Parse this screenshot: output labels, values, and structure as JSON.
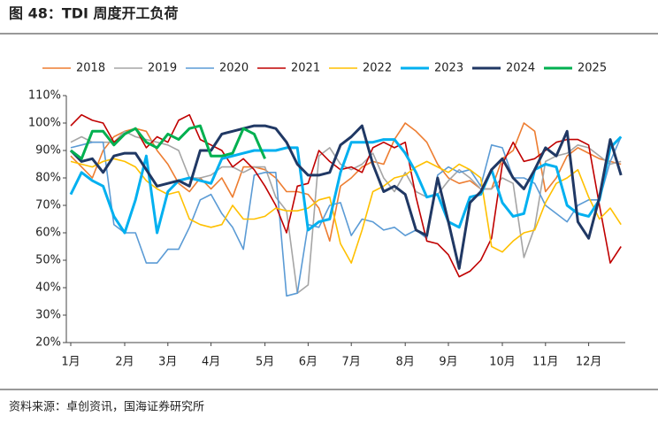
{
  "chart_data": {
    "type": "line",
    "title": "图 48：TDI 周度开工负荷",
    "source": "资料来源：卓创资讯，国海证券研究所",
    "categories": [
      "1月",
      null,
      null,
      null,
      null,
      "2月",
      null,
      null,
      null,
      "3月",
      null,
      null,
      null,
      "4月",
      null,
      null,
      null,
      null,
      "5月",
      null,
      null,
      null,
      "6月",
      null,
      null,
      null,
      "7月",
      null,
      null,
      null,
      null,
      "8月",
      null,
      null,
      null,
      "9月",
      null,
      null,
      null,
      null,
      "10月",
      null,
      null,
      null,
      "11月",
      null,
      null,
      null,
      "12月",
      null,
      null,
      null
    ],
    "ylim": [
      20,
      110
    ],
    "yticks": [
      {
        "value": 20,
        "label": "20%"
      },
      {
        "value": 30,
        "label": "30%"
      },
      {
        "value": 40,
        "label": "40%"
      },
      {
        "value": 50,
        "label": "50%"
      },
      {
        "value": 60,
        "label": "60%"
      },
      {
        "value": 70,
        "label": "70%"
      },
      {
        "value": 80,
        "label": "80%"
      },
      {
        "value": 90,
        "label": "90%"
      },
      {
        "value": 100,
        "label": "100%"
      },
      {
        "value": 110,
        "label": "110%"
      }
    ],
    "grid": false,
    "legend": "top",
    "series": [
      {
        "name": "2018",
        "color": "#ed7d31",
        "width": 1.6,
        "values": [
          88,
          84,
          80,
          90,
          95,
          97,
          98,
          97,
          90,
          85,
          78,
          75,
          80,
          76,
          80,
          73,
          84,
          84,
          83,
          80,
          75,
          75,
          74,
          69,
          57,
          77,
          80,
          84,
          86,
          85,
          94,
          100,
          97,
          93,
          85,
          80,
          78,
          79,
          76,
          76,
          87,
          90,
          100,
          97,
          75,
          80,
          88,
          91,
          89,
          87,
          86,
          85
        ]
      },
      {
        "name": "2019",
        "color": "#a5a5a5",
        "width": 1.6,
        "values": [
          93,
          95,
          93,
          93,
          93,
          97,
          95,
          94,
          93,
          92,
          90,
          80,
          80,
          81,
          84,
          84,
          82,
          84,
          84,
          73,
          68,
          38,
          41,
          88,
          91,
          85,
          83,
          85,
          89,
          80,
          75,
          82,
          75,
          73,
          74,
          79,
          83,
          80,
          76,
          76,
          80,
          78,
          51,
          62,
          86,
          88,
          89,
          92,
          91,
          88,
          85,
          86
        ]
      },
      {
        "name": "2020",
        "color": "#5b9bd5",
        "width": 1.6,
        "values": [
          91,
          92,
          93,
          93,
          63,
          60,
          60,
          49,
          49,
          54,
          54,
          62,
          72,
          74,
          67,
          62,
          54,
          81,
          82,
          82,
          37,
          38,
          63,
          62,
          70,
          71,
          59,
          65,
          64,
          61,
          62,
          59,
          61,
          58,
          81,
          84,
          82,
          83,
          77,
          92,
          91,
          80,
          80,
          78,
          70,
          67,
          64,
          70,
          72,
          72,
          86,
          95
        ]
      },
      {
        "name": "2021",
        "color": "#c00000",
        "width": 1.6,
        "values": [
          99,
          103,
          101,
          100,
          93,
          96,
          98,
          91,
          95,
          93,
          101,
          103,
          94,
          92,
          90,
          84,
          87,
          83,
          77,
          70,
          60,
          77,
          78,
          90,
          86,
          83,
          84,
          82,
          91,
          93,
          91,
          93,
          73,
          57,
          56,
          52,
          44,
          46,
          50,
          58,
          85,
          93,
          86,
          87,
          90,
          93,
          94,
          94,
          92,
          70,
          49,
          55
        ]
      },
      {
        "name": "2022",
        "color": "#ffc000",
        "width": 1.6,
        "values": [
          86,
          85,
          84,
          86,
          87,
          86,
          84,
          79,
          76,
          74,
          75,
          65,
          63,
          62,
          63,
          70,
          65,
          65,
          66,
          69,
          68,
          68,
          69,
          72,
          73,
          56,
          49,
          61,
          75,
          77,
          80,
          81,
          84,
          86,
          84,
          82,
          85,
          83,
          80,
          55,
          53,
          57,
          60,
          61,
          71,
          78,
          80,
          83,
          73,
          65,
          69,
          63
        ]
      },
      {
        "name": "2023",
        "color": "#00b0f0",
        "width": 3,
        "values": [
          74,
          82,
          79,
          77,
          66,
          60,
          72,
          88,
          60,
          75,
          79,
          80,
          79,
          78,
          87,
          88,
          89,
          90,
          90,
          90,
          91,
          91,
          61,
          64,
          65,
          82,
          93,
          93,
          93,
          94,
          94,
          89,
          82,
          73,
          74,
          64,
          62,
          73,
          74,
          83,
          71,
          66,
          67,
          83,
          85,
          84,
          70,
          67,
          66,
          72,
          91,
          95
        ]
      },
      {
        "name": "2024",
        "color": "#203864",
        "width": 3,
        "values": [
          90,
          86,
          87,
          82,
          88,
          89,
          89,
          83,
          77,
          78,
          79,
          77,
          90,
          90,
          96,
          97,
          98,
          99,
          99,
          98,
          93,
          85,
          81,
          81,
          82,
          92,
          95,
          99,
          85,
          75,
          77,
          74,
          61,
          59,
          80,
          64,
          47,
          71,
          75,
          83,
          87,
          80,
          76,
          83,
          91,
          88,
          97,
          64,
          58,
          73,
          94,
          81
        ]
      },
      {
        "name": "2025",
        "color": "#00b050",
        "width": 3,
        "values": [
          90,
          87,
          97,
          97,
          92,
          96,
          98,
          93,
          91,
          96,
          94,
          98,
          99,
          88,
          88,
          89,
          98,
          96,
          87,
          null,
          null,
          null,
          null,
          null,
          null,
          null,
          null,
          null,
          null,
          null,
          null,
          null,
          null,
          null,
          null,
          null,
          null,
          null,
          null,
          null,
          null,
          null,
          null,
          null,
          null,
          null,
          null,
          null,
          null,
          null,
          null,
          null
        ]
      }
    ]
  }
}
